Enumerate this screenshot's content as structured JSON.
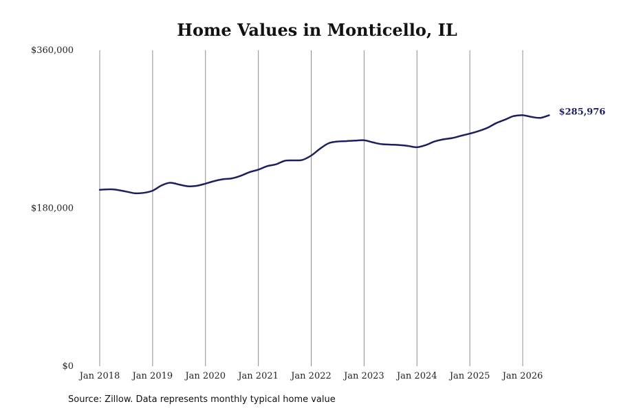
{
  "chart_data": {
    "type": "line",
    "title": "Home Values in Monticello, IL",
    "xlabel": "",
    "ylabel": "",
    "ylim": [
      0,
      360000
    ],
    "y_ticks": [
      "$360,000",
      "$180,000",
      "$0"
    ],
    "y_tick_values": [
      360000,
      180000,
      0
    ],
    "x_ticks": [
      "Jan 2018",
      "Jan 2019",
      "Jan 2020",
      "Jan 2021",
      "Jan 2022",
      "Jan 2023",
      "Jan 2024",
      "Jan 2025",
      "Jan 2026"
    ],
    "x_tick_values": [
      2018,
      2019,
      2020,
      2021,
      2022,
      2023,
      2024,
      2025,
      2026
    ],
    "xlim": [
      2018,
      2026.75
    ],
    "grid": "vertical",
    "color": "#1b1f5e",
    "end_label": "$285,976",
    "series": [
      {
        "points": [
          [
            2018.0,
            201000
          ],
          [
            2018.25,
            201500
          ],
          [
            2018.5,
            199000
          ],
          [
            2018.67,
            197000
          ],
          [
            2018.83,
            197500
          ],
          [
            2019.0,
            200000
          ],
          [
            2019.17,
            206000
          ],
          [
            2019.33,
            209000
          ],
          [
            2019.5,
            207000
          ],
          [
            2019.67,
            205000
          ],
          [
            2019.83,
            205500
          ],
          [
            2020.0,
            208000
          ],
          [
            2020.17,
            211000
          ],
          [
            2020.33,
            213000
          ],
          [
            2020.5,
            214000
          ],
          [
            2020.67,
            217000
          ],
          [
            2020.83,
            221000
          ],
          [
            2021.0,
            224000
          ],
          [
            2021.17,
            228000
          ],
          [
            2021.33,
            230000
          ],
          [
            2021.5,
            234000
          ],
          [
            2021.67,
            234500
          ],
          [
            2021.83,
            235000
          ],
          [
            2022.0,
            240000
          ],
          [
            2022.17,
            248000
          ],
          [
            2022.33,
            254000
          ],
          [
            2022.5,
            256000
          ],
          [
            2022.67,
            256500
          ],
          [
            2022.83,
            257000
          ],
          [
            2023.0,
            257500
          ],
          [
            2023.17,
            255000
          ],
          [
            2023.33,
            253000
          ],
          [
            2023.5,
            252500
          ],
          [
            2023.67,
            252000
          ],
          [
            2023.83,
            251000
          ],
          [
            2024.0,
            249500
          ],
          [
            2024.17,
            252000
          ],
          [
            2024.33,
            256000
          ],
          [
            2024.5,
            258500
          ],
          [
            2024.67,
            260000
          ],
          [
            2024.83,
            262500
          ],
          [
            2025.0,
            265000
          ],
          [
            2025.17,
            268000
          ],
          [
            2025.33,
            271500
          ],
          [
            2025.5,
            277000
          ],
          [
            2025.67,
            281000
          ],
          [
            2025.83,
            285000
          ],
          [
            2026.0,
            286000
          ],
          [
            2026.17,
            284000
          ],
          [
            2026.33,
            283000
          ],
          [
            2026.5,
            285976
          ]
        ]
      }
    ]
  },
  "footer": {
    "source": "Source: Zillow. Data represents monthly typical home value"
  }
}
